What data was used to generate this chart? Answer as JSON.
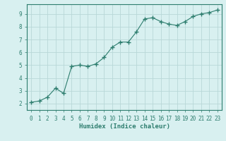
{
  "x": [
    0,
    1,
    2,
    3,
    4,
    5,
    6,
    7,
    8,
    9,
    10,
    11,
    12,
    13,
    14,
    15,
    16,
    17,
    18,
    19,
    20,
    21,
    22,
    23
  ],
  "y": [
    2.1,
    2.2,
    2.5,
    3.2,
    2.8,
    4.9,
    5.0,
    4.9,
    5.1,
    5.6,
    6.4,
    6.8,
    6.8,
    7.6,
    8.6,
    8.7,
    8.4,
    8.2,
    8.1,
    8.4,
    8.8,
    9.0,
    9.1,
    9.3
  ],
  "line_color": "#2d7d6e",
  "marker": "+",
  "marker_size": 4,
  "bg_color": "#d8f0f0",
  "grid_color": "#b8d8d8",
  "axis_color": "#2d7d6e",
  "xlabel": "Humidex (Indice chaleur)",
  "xlim": [
    -0.5,
    23.5
  ],
  "ylim": [
    1.5,
    9.75
  ],
  "yticks": [
    2,
    3,
    4,
    5,
    6,
    7,
    8,
    9
  ],
  "xticks": [
    0,
    1,
    2,
    3,
    4,
    5,
    6,
    7,
    8,
    9,
    10,
    11,
    12,
    13,
    14,
    15,
    16,
    17,
    18,
    19,
    20,
    21,
    22,
    23
  ],
  "tick_fontsize": 5.5,
  "xlabel_fontsize": 6.5
}
